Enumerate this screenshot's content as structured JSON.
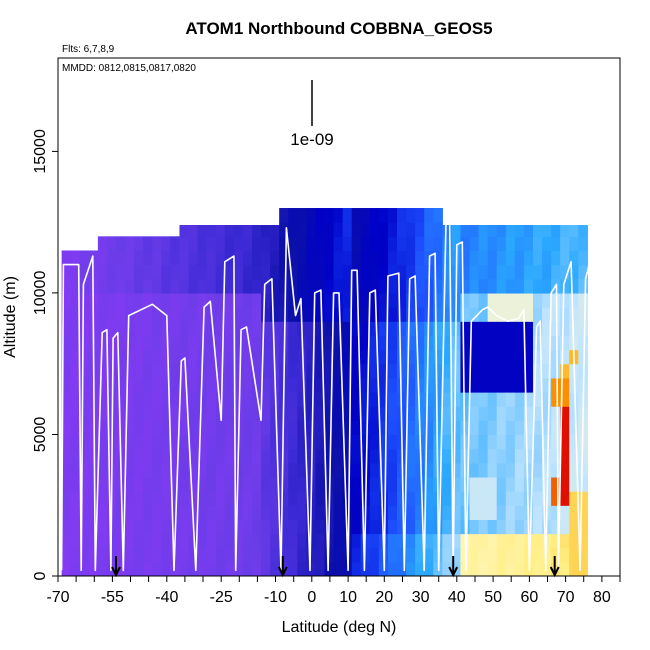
{
  "chart_data": {
    "type": "heatmap",
    "title": "ATOM1 Northbound COBBNA_GEOS5",
    "subtitle_flights": "Flts: 6,7,8,9",
    "subtitle_dates": "MMDD: 0812,0815,0817,0820",
    "xlabel": "Latitude (deg N)",
    "ylabel": "Altitude (m)",
    "xlim": [
      -70,
      85
    ],
    "ylim": [
      0,
      18300
    ],
    "x_tick_labels": [
      "-70",
      "-55",
      "-40",
      "-25",
      "-10",
      "0",
      "10",
      "20",
      "30",
      "40",
      "50",
      "60",
      "70",
      "80"
    ],
    "y_tick_labels": [
      "0",
      "5000",
      "10000",
      "15000"
    ],
    "scale_bar_label": "1e-09",
    "arrow_latitudes": [
      -54,
      -8,
      39,
      67
    ],
    "colormap": [
      "#8a3bf5",
      "#6a3ce8",
      "#3c2ad6",
      "#0c10a8",
      "#0000c8",
      "#1e50ff",
      "#2aa8ff",
      "#bfe4ff",
      "#fff8c8",
      "#ffee80",
      "#ffa000",
      "#e01000"
    ],
    "ceiling_segments": [
      {
        "lat": [
          -69,
          -59
        ],
        "alt_top": 11500,
        "value": 0.07
      },
      {
        "lat": [
          -59,
          -37
        ],
        "alt_top": 12000,
        "value": 0.08
      },
      {
        "lat": [
          -37,
          -10
        ],
        "alt_top": 12400,
        "value": 0.2
      },
      {
        "lat": [
          -10,
          35
        ],
        "alt_top": 13000,
        "value": 0.35
      },
      {
        "lat": [
          35,
          77
        ],
        "alt_top": 12400,
        "value": 0.4
      }
    ],
    "anomalies": [
      {
        "lat": [
          42,
          60
        ],
        "alt": [
          6500,
          9000
        ],
        "value": 0.35
      },
      {
        "lat": [
          49,
          60
        ],
        "alt": [
          9000,
          9800
        ],
        "value": 0.7
      },
      {
        "lat": [
          43,
          50
        ],
        "alt": [
          1800,
          3500
        ],
        "value": 0.65
      },
      {
        "lat": [
          67,
          71
        ],
        "alt": [
          6000,
          7000
        ],
        "value": 0.92
      },
      {
        "lat": [
          68,
          71
        ],
        "alt": [
          2500,
          6000
        ],
        "value": 1.0
      },
      {
        "lat": [
          66,
          68
        ],
        "alt": [
          2500,
          3500
        ],
        "value": 0.95
      },
      {
        "lat": [
          68,
          71
        ],
        "alt": [
          7000,
          7300
        ],
        "value": 0.88
      },
      {
        "lat": [
          70,
          73
        ],
        "alt": [
          7300,
          7800
        ],
        "value": 0.88
      },
      {
        "lat": [
          72,
          82
        ],
        "alt": [
          0,
          3000
        ],
        "value": 0.85
      }
    ],
    "profile_vertices": [
      [
        -69,
        200
      ],
      [
        -68.5,
        11000
      ],
      [
        -64.3,
        11000
      ],
      [
        -63.6,
        200
      ],
      [
        -63.0,
        10300
      ],
      [
        -60.4,
        11300
      ],
      [
        -59.7,
        200
      ],
      [
        -57.8,
        8600
      ],
      [
        -56.5,
        8700
      ],
      [
        -55.4,
        200
      ],
      [
        -54.8,
        8400
      ],
      [
        -53.5,
        8600
      ],
      [
        -52.0,
        200
      ],
      [
        -50.5,
        9200
      ],
      [
        -44.0,
        9600
      ],
      [
        -40.0,
        9200
      ],
      [
        -38.0,
        200
      ],
      [
        -36.0,
        7600
      ],
      [
        -35.0,
        7700
      ],
      [
        -32.0,
        200
      ],
      [
        -29.7,
        9500
      ],
      [
        -28.0,
        9700
      ],
      [
        -25.0,
        5500
      ],
      [
        -24.0,
        11100
      ],
      [
        -21.5,
        11300
      ],
      [
        -21.0,
        200
      ],
      [
        -19.5,
        8700
      ],
      [
        -18.0,
        8800
      ],
      [
        -14.0,
        5500
      ],
      [
        -13.0,
        10300
      ],
      [
        -11.0,
        10500
      ],
      [
        -8.5,
        200
      ],
      [
        -7.0,
        12300
      ],
      [
        -4.5,
        9200
      ],
      [
        -3.0,
        9800
      ],
      [
        -0.5,
        200
      ],
      [
        0.8,
        10000
      ],
      [
        2.5,
        10100
      ],
      [
        4.5,
        200
      ],
      [
        6.0,
        10000
      ],
      [
        7.5,
        10000
      ],
      [
        10.0,
        200
      ],
      [
        11.0,
        10800
      ],
      [
        12.5,
        10800
      ],
      [
        14.5,
        200
      ],
      [
        16.0,
        10000
      ],
      [
        17.5,
        10100
      ],
      [
        20.0,
        200
      ],
      [
        21.0,
        10600
      ],
      [
        24.0,
        10700
      ],
      [
        25.5,
        200
      ],
      [
        27.0,
        10500
      ],
      [
        28.5,
        10600
      ],
      [
        31.0,
        200
      ],
      [
        32.5,
        11300
      ],
      [
        34.0,
        11400
      ],
      [
        35.0,
        200
      ],
      [
        37.0,
        12500
      ],
      [
        38.0,
        12800
      ],
      [
        39.0,
        200
      ],
      [
        40.0,
        11700
      ],
      [
        41.5,
        11800
      ],
      [
        42.5,
        200
      ],
      [
        44.0,
        9000
      ],
      [
        45.5,
        9200
      ],
      [
        47.0,
        9400
      ],
      [
        48.5,
        9500
      ],
      [
        51.0,
        9200
      ],
      [
        54.0,
        9000
      ],
      [
        57.0,
        9100
      ],
      [
        58.5,
        9400
      ],
      [
        60.0,
        200
      ],
      [
        62.0,
        8800
      ],
      [
        63.0,
        9000
      ],
      [
        64.5,
        200
      ],
      [
        66.0,
        10000
      ],
      [
        67.5,
        10300
      ],
      [
        68.0,
        200
      ],
      [
        69.5,
        10300
      ],
      [
        71.5,
        11100
      ],
      [
        74.0,
        200
      ],
      [
        75.5,
        10500
      ],
      [
        76.5,
        11000
      ],
      [
        77.5,
        200
      ],
      [
        78.5,
        9800
      ],
      [
        79.5,
        10300
      ]
    ],
    "grid": false
  }
}
